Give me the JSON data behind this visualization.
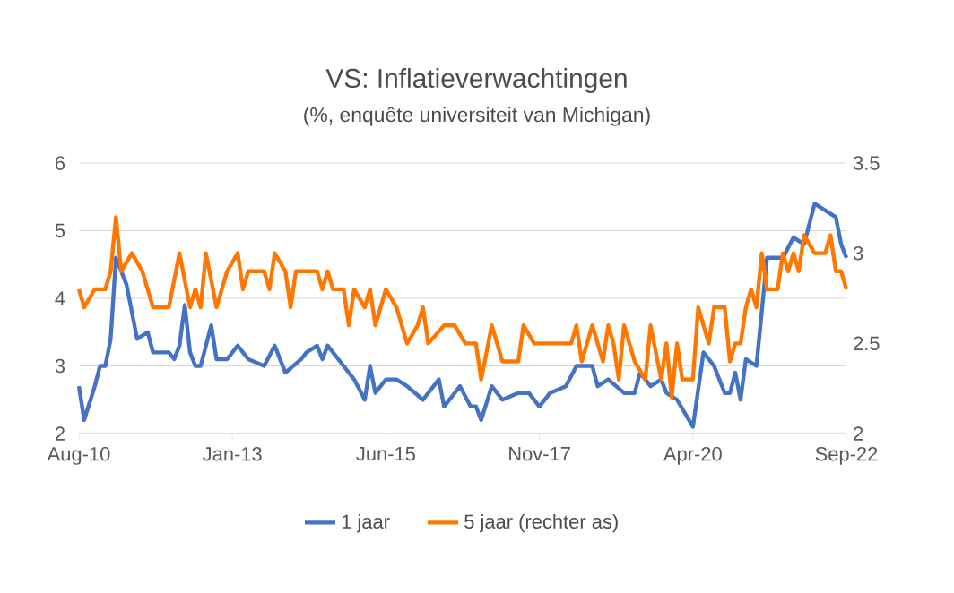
{
  "chart_data": {
    "type": "line",
    "title": "VS: Inflatieverwachtingen",
    "subtitle": "(%, enquête universiteit van Michigan)",
    "xlim": [
      "2010-08",
      "2022-09"
    ],
    "xticks": [
      {
        "value": "2010-08",
        "label": "Aug-10"
      },
      {
        "value": "2013-01",
        "label": "Jan-13"
      },
      {
        "value": "2015-06",
        "label": "Jun-15"
      },
      {
        "value": "2017-11",
        "label": "Nov-17"
      },
      {
        "value": "2020-04",
        "label": "Apr-20"
      },
      {
        "value": "2022-09",
        "label": "Sep-22"
      }
    ],
    "ylim": [
      2,
      6
    ],
    "yticks": [
      2,
      3,
      4,
      5,
      6
    ],
    "y2lim": [
      2,
      3.5
    ],
    "y2ticks": [
      2,
      2.5,
      3,
      3.5
    ],
    "grid": "y",
    "legend": "bottom",
    "series": [
      {
        "name": "1 jaar",
        "color": "#4472c4",
        "x": [
          "2010-08",
          "2010-09",
          "2010-11",
          "2010-12",
          "2011-01",
          "2011-02",
          "2011-03",
          "2011-05",
          "2011-07",
          "2011-09",
          "2011-10",
          "2012-01",
          "2012-02",
          "2012-03",
          "2012-04",
          "2012-05",
          "2012-06",
          "2012-07",
          "2012-09",
          "2012-10",
          "2012-12",
          "2013-02",
          "2013-04",
          "2013-07",
          "2013-09",
          "2013-11",
          "2014-02",
          "2014-03",
          "2014-05",
          "2014-06",
          "2014-07",
          "2014-10",
          "2014-12",
          "2015-02",
          "2015-03",
          "2015-04",
          "2015-06",
          "2015-08",
          "2015-10",
          "2016-01",
          "2016-04",
          "2016-05",
          "2016-08",
          "2016-10",
          "2016-11",
          "2016-12",
          "2017-02",
          "2017-04",
          "2017-07",
          "2017-09",
          "2017-11",
          "2018-01",
          "2018-04",
          "2018-06",
          "2018-09",
          "2018-10",
          "2018-12",
          "2019-03",
          "2019-05",
          "2019-06",
          "2019-08",
          "2019-10",
          "2019-11",
          "2020-01",
          "2020-04",
          "2020-06",
          "2020-08",
          "2020-10",
          "2020-11",
          "2020-12",
          "2021-01",
          "2021-02",
          "2021-04",
          "2021-05",
          "2021-06",
          "2021-09",
          "2021-11",
          "2022-01",
          "2022-03",
          "2022-05",
          "2022-07",
          "2022-08",
          "2022-09"
        ],
        "values": [
          2.7,
          2.2,
          2.7,
          3.0,
          3.0,
          3.4,
          4.6,
          4.2,
          3.4,
          3.5,
          3.2,
          3.2,
          3.1,
          3.3,
          3.9,
          3.2,
          3.0,
          3.0,
          3.6,
          3.1,
          3.1,
          3.3,
          3.1,
          3.0,
          3.3,
          2.9,
          3.1,
          3.2,
          3.3,
          3.1,
          3.3,
          3.0,
          2.8,
          2.5,
          3.0,
          2.6,
          2.8,
          2.8,
          2.7,
          2.5,
          2.8,
          2.4,
          2.7,
          2.4,
          2.4,
          2.2,
          2.7,
          2.5,
          2.6,
          2.6,
          2.4,
          2.6,
          2.7,
          3.0,
          3.0,
          2.7,
          2.8,
          2.6,
          2.6,
          2.9,
          2.7,
          2.8,
          2.6,
          2.5,
          2.1,
          3.2,
          3.0,
          2.6,
          2.6,
          2.9,
          2.5,
          3.1,
          3.0,
          3.8,
          4.6,
          4.6,
          4.9,
          4.8,
          5.4,
          5.3,
          5.2,
          4.8,
          4.6
        ]
      },
      {
        "name": "5 jaar (rechter as)",
        "color": "#ff7700",
        "axis": "y2",
        "x": [
          "2010-08",
          "2010-09",
          "2010-11",
          "2011-01",
          "2011-02",
          "2011-03",
          "2011-04",
          "2011-06",
          "2011-08",
          "2011-10",
          "2012-01",
          "2012-03",
          "2012-05",
          "2012-06",
          "2012-07",
          "2012-08",
          "2012-10",
          "2012-12",
          "2013-02",
          "2013-03",
          "2013-04",
          "2013-07",
          "2013-08",
          "2013-09",
          "2013-11",
          "2013-12",
          "2014-01",
          "2014-05",
          "2014-06",
          "2014-07",
          "2014-08",
          "2014-10",
          "2014-11",
          "2014-12",
          "2015-02",
          "2015-03",
          "2015-04",
          "2015-06",
          "2015-08",
          "2015-10",
          "2015-12",
          "2016-01",
          "2016-02",
          "2016-05",
          "2016-07",
          "2016-09",
          "2016-11",
          "2016-12",
          "2017-02",
          "2017-04",
          "2017-07",
          "2017-08",
          "2017-10",
          "2017-12",
          "2018-02",
          "2018-05",
          "2018-06",
          "2018-07",
          "2018-09",
          "2018-11",
          "2018-12",
          "2019-01",
          "2019-02",
          "2019-03",
          "2019-05",
          "2019-07",
          "2019-08",
          "2019-10",
          "2019-11",
          "2019-12",
          "2020-01",
          "2020-02",
          "2020-04",
          "2020-05",
          "2020-07",
          "2020-08",
          "2020-10",
          "2020-11",
          "2020-12",
          "2021-01",
          "2021-02",
          "2021-03",
          "2021-04",
          "2021-05",
          "2021-06",
          "2021-08",
          "2021-09",
          "2021-10",
          "2021-11",
          "2021-12",
          "2022-01",
          "2022-03",
          "2022-05",
          "2022-06",
          "2022-07",
          "2022-08",
          "2022-09"
        ],
        "values": [
          2.8,
          2.7,
          2.8,
          2.8,
          2.9,
          3.2,
          2.9,
          3.0,
          2.9,
          2.7,
          2.7,
          3.0,
          2.7,
          2.8,
          2.7,
          3.0,
          2.7,
          2.9,
          3.0,
          2.8,
          2.9,
          2.9,
          2.8,
          3.0,
          2.9,
          2.7,
          2.9,
          2.9,
          2.8,
          2.9,
          2.8,
          2.8,
          2.6,
          2.8,
          2.7,
          2.8,
          2.6,
          2.8,
          2.7,
          2.5,
          2.6,
          2.7,
          2.5,
          2.6,
          2.6,
          2.5,
          2.5,
          2.3,
          2.6,
          2.4,
          2.4,
          2.6,
          2.5,
          2.5,
          2.5,
          2.5,
          2.6,
          2.4,
          2.6,
          2.4,
          2.6,
          2.5,
          2.3,
          2.6,
          2.4,
          2.3,
          2.6,
          2.3,
          2.5,
          2.2,
          2.5,
          2.3,
          2.3,
          2.7,
          2.5,
          2.7,
          2.7,
          2.4,
          2.5,
          2.5,
          2.7,
          2.8,
          2.7,
          3.0,
          2.8,
          2.8,
          3.0,
          2.9,
          3.0,
          2.9,
          3.1,
          3.0,
          3.0,
          3.1,
          2.9,
          2.9,
          2.8
        ]
      }
    ]
  }
}
